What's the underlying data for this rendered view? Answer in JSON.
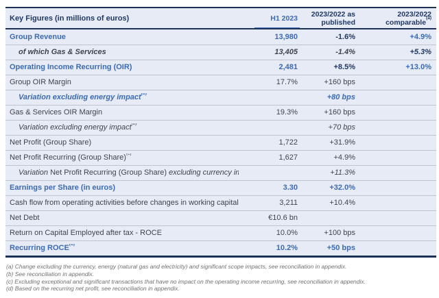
{
  "colors": {
    "navy": "#203864",
    "blue_accent": "#3a6ab8",
    "row_background": "#e7ebf6",
    "separator": "#bfc3ce",
    "footnote_gray": "#6f6f6f"
  },
  "table": {
    "header": {
      "label": "Key Figures (in millions of euros)",
      "h1": "H1 2023",
      "published_line1": "2023/2022 as",
      "published_line2": "published",
      "comparable_line1": "2023/2022",
      "comparable_line2": "comparable",
      "comparable_sup": "(a)"
    },
    "rows": [
      {
        "parts": [
          {
            "t": "Group Revenue",
            "i": false
          }
        ],
        "sup": "",
        "indent": false,
        "cells": {
          "h1": "13,980",
          "pub": "-1.6%",
          "comp": "+4.9%"
        },
        "cls": {
          "label": "s-blue",
          "h1": "s-blue",
          "pub": "s-navy",
          "comp": "s-blue"
        }
      },
      {
        "parts": [
          {
            "t": "of which Gas & Services",
            "i": false
          }
        ],
        "sup": "",
        "indent": true,
        "cells": {
          "h1": "13,405",
          "pub": "-1.4%",
          "comp": "+5.3%"
        },
        "cls": {
          "label": "s-dark-bi",
          "h1": "s-dark-bi",
          "pub": "s-dark-bi",
          "comp": "s-navy-bi"
        }
      },
      {
        "parts": [
          {
            "t": "Operating Income Recurring (OIR)",
            "i": false
          }
        ],
        "sup": "",
        "indent": false,
        "cells": {
          "h1": "2,481",
          "pub": "+8.5%",
          "comp": "+13.0%"
        },
        "cls": {
          "label": "s-blue",
          "h1": "s-blue",
          "pub": "s-navy",
          "comp": "s-blue"
        }
      },
      {
        "parts": [
          {
            "t": "Group OIR Margin",
            "i": false
          }
        ],
        "sup": "",
        "indent": false,
        "cells": {
          "h1": "17.7%",
          "pub": "+160 bps",
          "comp": ""
        },
        "cls": {
          "label": "s-dark",
          "h1": "s-dark",
          "pub": "s-dark",
          "comp": "s-dark"
        }
      },
      {
        "parts": [
          {
            "t": "Variation excluding energy impact",
            "i": false
          }
        ],
        "sup": "(b)",
        "indent": true,
        "cells": {
          "h1": "",
          "pub": "+80 bps",
          "comp": ""
        },
        "cls": {
          "label": "s-blue-bi",
          "h1": "s-blue-bi",
          "pub": "s-blue-bi",
          "comp": "s-blue-bi"
        }
      },
      {
        "parts": [
          {
            "t": "Gas & Services OIR Margin",
            "i": false
          }
        ],
        "sup": "",
        "indent": false,
        "cells": {
          "h1": "19.3%",
          "pub": "+160 bps",
          "comp": ""
        },
        "cls": {
          "label": "s-dark",
          "h1": "s-dark",
          "pub": "s-dark",
          "comp": "s-dark"
        }
      },
      {
        "parts": [
          {
            "t": "Variation excluding energy impact",
            "i": false
          }
        ],
        "sup": "(b)",
        "indent": true,
        "cells": {
          "h1": "",
          "pub": "+70 bps",
          "comp": ""
        },
        "cls": {
          "label": "s-dark-i",
          "h1": "s-dark-i",
          "pub": "s-dark-i",
          "comp": "s-dark-i"
        }
      },
      {
        "parts": [
          {
            "t": "Net Profit (Group Share)",
            "i": false
          }
        ],
        "sup": "",
        "indent": false,
        "cells": {
          "h1": "1,722",
          "pub": "+31.9%",
          "comp": ""
        },
        "cls": {
          "label": "s-dark",
          "h1": "s-dark",
          "pub": "s-dark",
          "comp": "s-dark"
        }
      },
      {
        "parts": [
          {
            "t": "Net Profit Recurring (Group Share)",
            "i": false
          }
        ],
        "sup": "(c)",
        "indent": false,
        "cells": {
          "h1": "1,627",
          "pub": "+4.9%",
          "comp": ""
        },
        "cls": {
          "label": "s-dark",
          "h1": "s-dark",
          "pub": "s-dark",
          "comp": "s-dark"
        }
      },
      {
        "parts": [
          {
            "t": "Variation ",
            "i": true
          },
          {
            "t": "Net Profit Recurring (Group Share) ",
            "i": false
          },
          {
            "t": "excluding currency impact",
            "i": true
          }
        ],
        "sup": "(b)",
        "supItalic": true,
        "indent": true,
        "cells": {
          "h1": "",
          "pub": "+11.3%",
          "comp": ""
        },
        "cls": {
          "label": "s-dark",
          "h1": "s-dark-i",
          "pub": "s-dark-i",
          "comp": "s-dark-i"
        }
      },
      {
        "parts": [
          {
            "t": "Earnings per Share (in euros)",
            "i": false
          }
        ],
        "sup": "",
        "indent": false,
        "cells": {
          "h1": "3.30",
          "pub": "+32.0%",
          "comp": ""
        },
        "cls": {
          "label": "s-blue",
          "h1": "s-blue",
          "pub": "s-blue",
          "comp": "s-blue"
        }
      },
      {
        "parts": [
          {
            "t": "Cash flow from operating activities before changes in working capital",
            "i": false
          }
        ],
        "sup": "",
        "indent": false,
        "cells": {
          "h1": "3,211",
          "pub": "+10.4%",
          "comp": ""
        },
        "cls": {
          "label": "s-dark",
          "h1": "s-dark",
          "pub": "s-dark",
          "comp": "s-dark"
        }
      },
      {
        "parts": [
          {
            "t": "Net Debt",
            "i": false
          }
        ],
        "sup": "",
        "indent": false,
        "cells": {
          "h1": "€10.6 bn",
          "pub": "",
          "comp": ""
        },
        "cls": {
          "label": "s-dark",
          "h1": "s-dark",
          "pub": "s-dark",
          "comp": "s-dark"
        }
      },
      {
        "parts": [
          {
            "t": "Return on Capital Employed after tax - ROCE",
            "i": false
          }
        ],
        "sup": "",
        "indent": false,
        "cells": {
          "h1": "10.0%",
          "pub": "+100 bps",
          "comp": ""
        },
        "cls": {
          "label": "s-dark",
          "h1": "s-dark",
          "pub": "s-dark",
          "comp": "s-dark"
        }
      },
      {
        "parts": [
          {
            "t": "Recurring ROCE",
            "i": false
          }
        ],
        "sup": "(d)",
        "indent": false,
        "cells": {
          "h1": "10.2%",
          "pub": "+50 bps",
          "comp": ""
        },
        "cls": {
          "label": "s-blue",
          "h1": "s-blue",
          "pub": "s-blue",
          "comp": "s-blue"
        }
      }
    ]
  },
  "footnotes": [
    "(a) Change excluding the currency, energy (natural gas and electricity) and significant scope impacts, see reconciliation in appendix.",
    "(b) See reconciliation in appendix.",
    "(c) Excluding exceptional and significant transactions that have no impact on the operating income recurring, see reconciliation in appendix.",
    "(d) Based on the recurring net profit, see reconciliation in appendix."
  ]
}
